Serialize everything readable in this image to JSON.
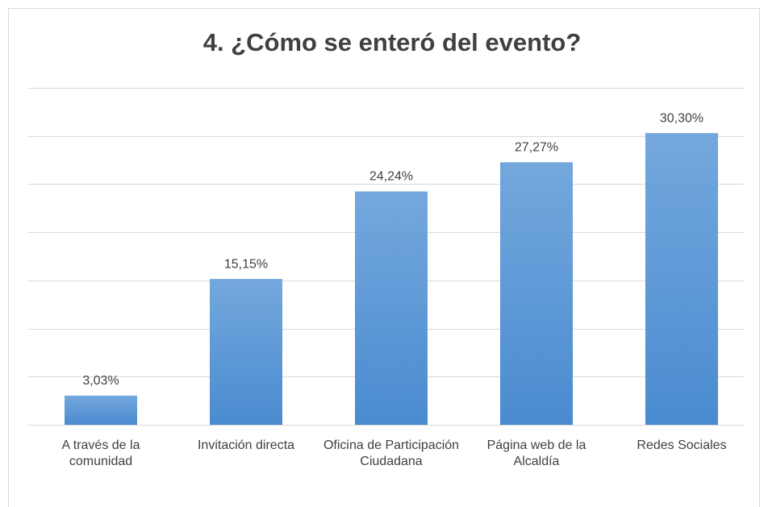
{
  "chart_data": {
    "type": "bar",
    "title": "4. ¿Cómo se enteró del evento?",
    "categories": [
      "A través de la comunidad",
      "Invitación directa",
      "Oficina de Participación Ciudadana",
      "Página web de la Alcaldía",
      "Redes Sociales"
    ],
    "values": [
      3.03,
      15.15,
      24.24,
      27.27,
      30.3
    ],
    "value_labels": [
      "3,03%",
      "15,15%",
      "24,24%",
      "27,27%",
      "30,30%"
    ],
    "color": "#5b9bd5",
    "ylim": [
      0,
      35
    ],
    "yticks": [
      0,
      5,
      10,
      15,
      20,
      25,
      30,
      35
    ],
    "grid": true
  }
}
